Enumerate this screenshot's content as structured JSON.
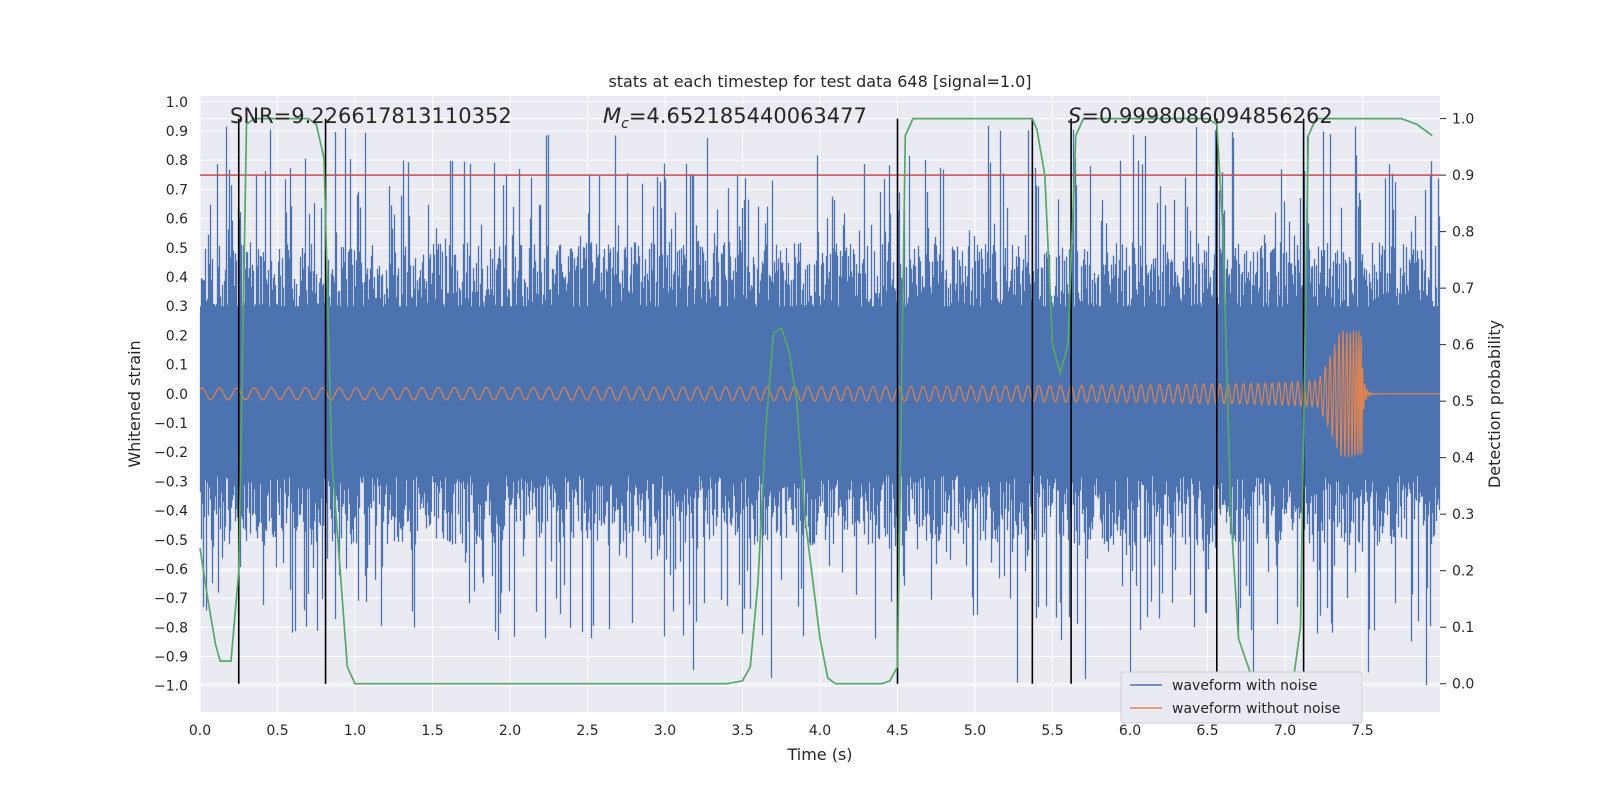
{
  "chart_data": {
    "type": "line",
    "title": "stats at each timestep for test data 648 [signal=1.0]",
    "xlabel": "Time (s)",
    "ylabel_left": "Whitened strain",
    "ylabel_right": "Detection probability",
    "xlim": [
      0.0,
      8.0
    ],
    "ylim_left": [
      -1.09,
      1.02
    ],
    "ylim_right": [
      -0.05,
      1.04
    ],
    "x_ticks": [
      "0.0",
      "0.5",
      "1.0",
      "1.5",
      "2.0",
      "2.5",
      "3.0",
      "3.5",
      "4.0",
      "4.5",
      "5.0",
      "5.5",
      "6.0",
      "6.5",
      "7.0",
      "7.5"
    ],
    "y_left_ticks": [
      "1.0",
      "0.9",
      "0.8",
      "0.7",
      "0.6",
      "0.5",
      "0.4",
      "0.3",
      "0.2",
      "0.1",
      "0.0",
      "−0.1",
      "−0.2",
      "−0.3",
      "−0.4",
      "−0.5",
      "−0.6",
      "−0.7",
      "−0.8",
      "−0.9",
      "−1.0"
    ],
    "y_right_ticks": [
      "1.0",
      "0.9",
      "0.8",
      "0.7",
      "0.6",
      "0.5",
      "0.4",
      "0.3",
      "0.2",
      "0.1",
      "0.0"
    ],
    "annotations": {
      "snr": "SNR=9.226617813110352",
      "mc_symbol": "M",
      "mc_sub": "c",
      "mc_value": "=4.652185440063477",
      "s_symbol": "S",
      "s_value": "=0.9998086094856262"
    },
    "threshold": {
      "value": 0.9,
      "color": "#c44e52"
    },
    "vertical_markers": [
      0.25,
      0.81,
      4.5,
      5.37,
      5.62,
      6.56,
      7.12
    ],
    "series": [
      {
        "name": "waveform with noise",
        "color": "#4c72b0",
        "description_envelope": {
          "x_range": [
            0.0,
            8.0
          ],
          "typical_abs": 0.45,
          "peak_max": 0.92,
          "peak_min": -1.0
        }
      },
      {
        "name": "waveform without noise",
        "color": "#dd8452",
        "chirp": {
          "t_merger": 7.5,
          "amp_start": 0.02,
          "amp_peak": 0.22,
          "after_merger": 0.0
        }
      },
      {
        "name": "detection probability",
        "color": "#55a868",
        "x": [
          0.0,
          0.05,
          0.1,
          0.13,
          0.2,
          0.25,
          0.3,
          0.35,
          0.4,
          0.5,
          0.6,
          0.7,
          0.75,
          0.8,
          0.85,
          0.95,
          1.0,
          1.5,
          2.0,
          2.5,
          3.0,
          3.4,
          3.5,
          3.55,
          3.6,
          3.65,
          3.7,
          3.75,
          3.8,
          3.85,
          3.9,
          4.0,
          4.05,
          4.1,
          4.2,
          4.3,
          4.4,
          4.45,
          4.5,
          4.55,
          4.6,
          4.7,
          5.0,
          5.3,
          5.37,
          5.4,
          5.45,
          5.5,
          5.55,
          5.6,
          5.65,
          5.7,
          5.75,
          6.0,
          6.5,
          6.56,
          6.6,
          6.65,
          6.7,
          6.8,
          6.9,
          7.0,
          7.05,
          7.1,
          7.15,
          7.2,
          7.3,
          7.5,
          7.75,
          7.85,
          7.95
        ],
        "y": [
          0.24,
          0.15,
          0.07,
          0.04,
          0.04,
          0.2,
          0.99,
          1.0,
          1.0,
          1.0,
          1.0,
          1.0,
          0.99,
          0.93,
          0.4,
          0.03,
          0.0,
          0.0,
          0.0,
          0.0,
          0.0,
          0.0,
          0.005,
          0.03,
          0.18,
          0.45,
          0.62,
          0.63,
          0.59,
          0.5,
          0.3,
          0.08,
          0.01,
          0.0,
          0.0,
          0.0,
          0.0,
          0.005,
          0.03,
          0.97,
          1.0,
          1.0,
          1.0,
          1.0,
          1.0,
          0.98,
          0.9,
          0.6,
          0.55,
          0.6,
          0.97,
          1.0,
          1.0,
          1.0,
          1.0,
          0.99,
          0.8,
          0.3,
          0.08,
          0.0,
          0.0,
          0.0,
          0.0,
          0.1,
          0.97,
          1.0,
          1.0,
          1.0,
          1.0,
          0.99,
          0.97
        ]
      }
    ],
    "legend": {
      "position": "lower-right",
      "entries": [
        "waveform with noise",
        "waveform without noise"
      ]
    },
    "grid": true,
    "background": "#eaeaf2"
  }
}
